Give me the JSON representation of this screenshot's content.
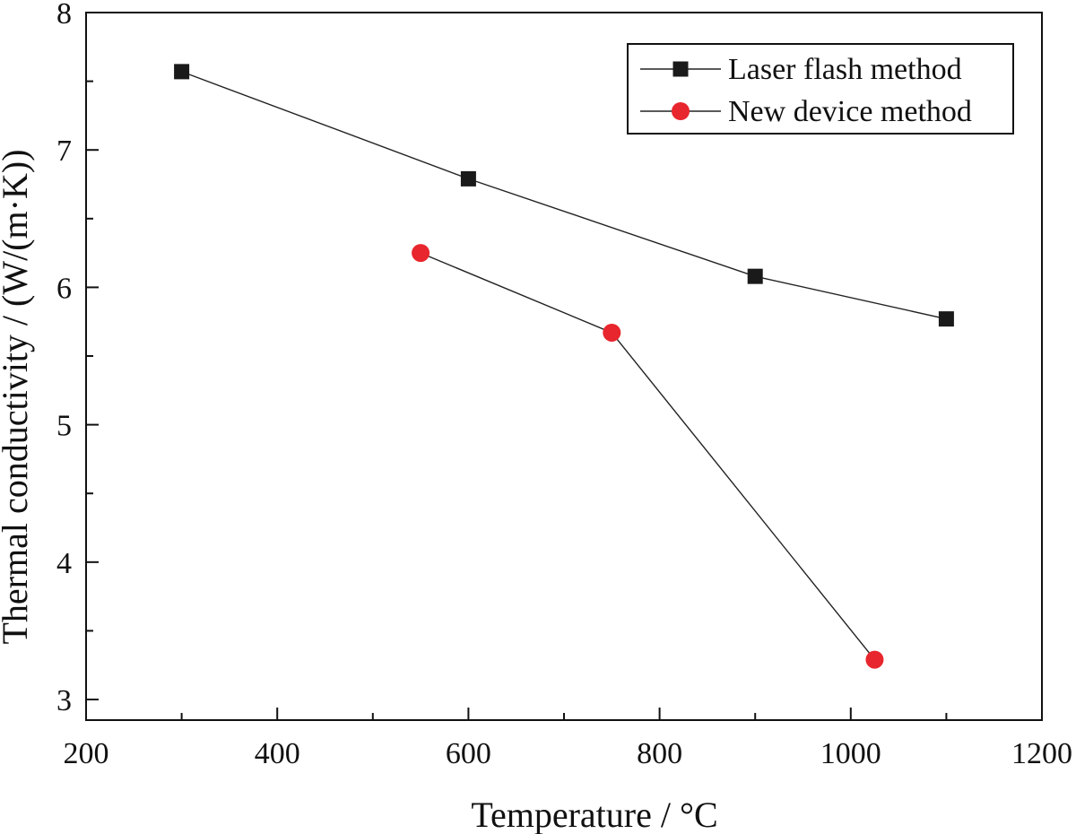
{
  "chart_data": {
    "type": "line",
    "title": "",
    "xlabel": "Temperature / °C",
    "ylabel": "Thermal conductivity / (W/(m·K))",
    "xlim": [
      200,
      1200
    ],
    "ylim": [
      2.85,
      8
    ],
    "xticks": [
      200,
      400,
      600,
      800,
      1000,
      1200
    ],
    "yticks": [
      3,
      4,
      5,
      6,
      7,
      8
    ],
    "legend_position": "top-right",
    "grid": false,
    "series": [
      {
        "name": "Laser flash method",
        "marker": "square",
        "color": "#1a1a1a",
        "x": [
          300,
          600,
          900,
          1100
        ],
        "y": [
          7.57,
          6.79,
          6.08,
          5.77
        ]
      },
      {
        "name": "New device method",
        "marker": "circle",
        "color": "#e8262d",
        "x": [
          550,
          750,
          1025
        ],
        "y": [
          6.25,
          5.67,
          3.29
        ]
      }
    ]
  }
}
